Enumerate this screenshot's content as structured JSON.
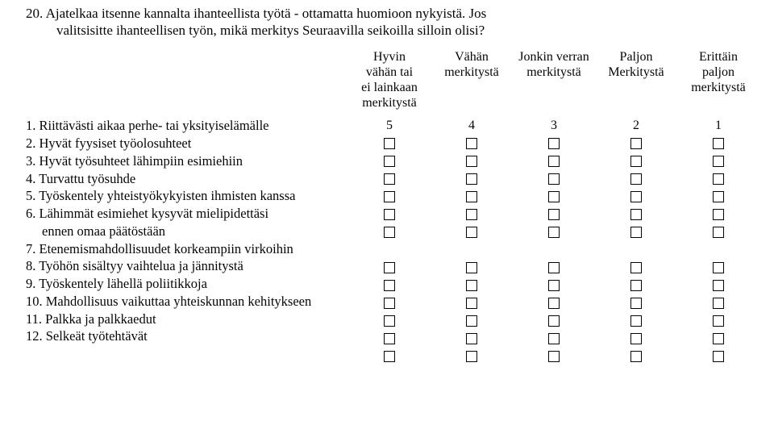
{
  "question": {
    "number": "20.",
    "line1": "Ajatelkaa itsenne kannalta ihanteellista työtä - ottamatta huomioon nykyistä. Jos",
    "line2": "valitsisitte ihanteellisen työn, mikä merkitys Seuraavilla seikoilla silloin olisi?"
  },
  "headers": [
    "Hyvin\nvähän tai\nei lainkaan\nmerkitystä",
    "Vähän\nmerkitystä",
    "Jonkin verran\nmerkitystä",
    "Paljon\nMerkitystä",
    "Erittäin\npaljon\nmerkitystä"
  ],
  "scale": [
    "5",
    "4",
    "3",
    "2",
    "1"
  ],
  "items": [
    {
      "n": "1.",
      "t": "Riittävästi aikaa perhe- tai yksityiselämälle",
      "box": true
    },
    {
      "n": "2.",
      "t": "Hyvät fyysiset työolosuhteet",
      "box": true
    },
    {
      "n": "3.",
      "t": "Hyvät työsuhteet lähimpiin esimiehiin",
      "box": true
    },
    {
      "n": "4.",
      "t": "Turvattu työsuhde",
      "box": true
    },
    {
      "n": "5.",
      "t": "Työskentely yhteistyökykyisten ihmisten kanssa",
      "box": true
    },
    {
      "n": "6.",
      "t": "Lähimmät esimiehet kysyvät mielipidettäsi",
      "box": true
    },
    {
      "n": "",
      "t": "ennen omaa päätöstään",
      "box": false,
      "indent": true
    },
    {
      "n": "7.",
      "t": "Etenemismahdollisuudet korkeampiin virkoihin",
      "box": true
    },
    {
      "n": "8.",
      "t": "Työhön sisältyy vaihtelua ja jännitystä",
      "box": true
    },
    {
      "n": "9.",
      "t": "Työskentely lähellä poliitikkoja",
      "box": true
    },
    {
      "n": "10.",
      "t": "Mahdollisuus vaikuttaa yhteiskunnan kehitykseen",
      "box": true
    },
    {
      "n": "11.",
      "t": "Palkka ja palkkaedut",
      "box": true
    },
    {
      "n": "12.",
      "t": "Selkeät työtehtävät",
      "box": true
    }
  ],
  "colors": {
    "text": "#000000",
    "background": "#ffffff",
    "box_border": "#000000"
  }
}
